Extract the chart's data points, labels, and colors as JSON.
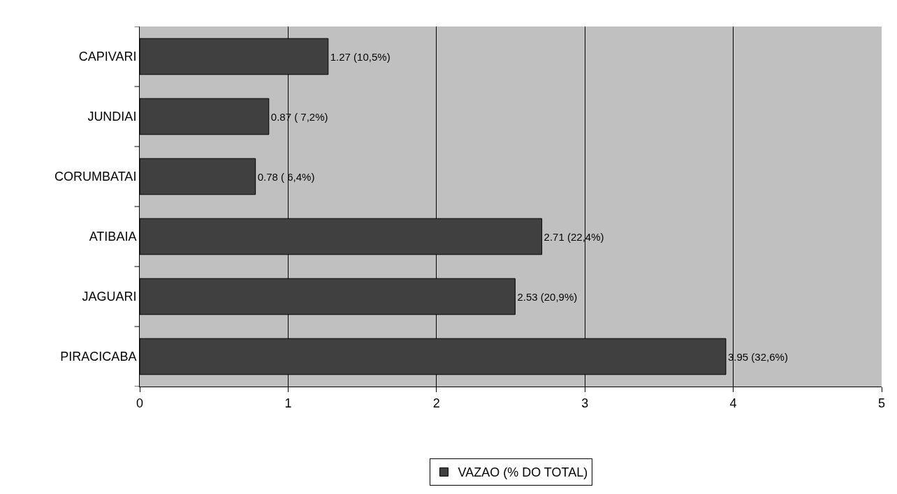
{
  "chart_data": {
    "type": "bar",
    "orientation": "horizontal",
    "categories": [
      "CAPIVARI",
      "JUNDIAI",
      "CORUMBATAI",
      "ATIBAIA",
      "JAGUARI",
      "PIRACICABA"
    ],
    "series": [
      {
        "name": "VAZAO (% DO TOTAL)",
        "color": "#404040",
        "values": [
          1.27,
          0.87,
          0.78,
          2.71,
          2.53,
          3.95
        ],
        "value_labels": [
          "1.27 (10,5%)",
          "0.87 ( 7,2%)",
          "0.78 ( 6,4%)",
          "2.71 (22,4%)",
          "2.53 (20,9%)",
          "3.95 (32,6%)"
        ]
      }
    ],
    "xlim": [
      0,
      5
    ],
    "xticks": [
      0,
      1,
      2,
      3,
      4,
      5
    ],
    "grid": "x",
    "legend": "bottom"
  }
}
